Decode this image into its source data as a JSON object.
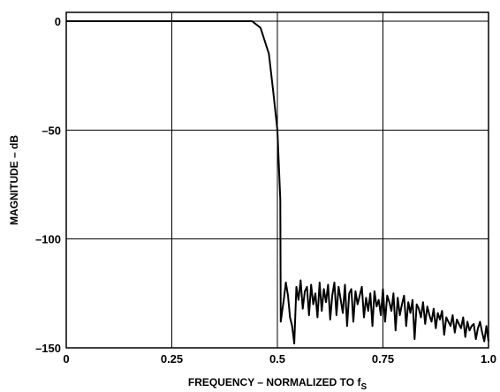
{
  "chart_data": {
    "type": "line",
    "title": "",
    "xlabel": "FREQUENCY – NORMALIZED TO f",
    "xlabel_sub": "S",
    "ylabel": "MAGNITUDE – dB",
    "xlim": [
      0,
      1.0
    ],
    "ylim": [
      -150,
      5
    ],
    "grid": true,
    "legend": "none",
    "x_ticks": [
      {
        "value": 0,
        "label": "0"
      },
      {
        "value": 0.25,
        "label": "0.25"
      },
      {
        "value": 0.5,
        "label": "0.5"
      },
      {
        "value": 0.75,
        "label": "0.75"
      },
      {
        "value": 1.0,
        "label": "1.0"
      }
    ],
    "y_ticks": [
      {
        "value": 0,
        "label": "0"
      },
      {
        "value": -50,
        "label": "–50"
      },
      {
        "value": -100,
        "label": "–100"
      },
      {
        "value": -150,
        "label": "–150"
      }
    ],
    "series": [
      {
        "color": "#000000",
        "x": [
          0,
          0.1,
          0.2,
          0.3,
          0.4,
          0.44,
          0.46,
          0.48,
          0.49,
          0.5,
          0.507,
          0.508,
          0.51,
          0.515,
          0.52,
          0.525,
          0.53,
          0.535,
          0.54,
          0.545,
          0.55,
          0.555,
          0.56,
          0.565,
          0.57,
          0.575,
          0.58,
          0.585,
          0.59,
          0.595,
          0.6,
          0.605,
          0.61,
          0.615,
          0.62,
          0.625,
          0.63,
          0.635,
          0.64,
          0.645,
          0.65,
          0.655,
          0.66,
          0.665,
          0.67,
          0.675,
          0.68,
          0.685,
          0.69,
          0.695,
          0.7,
          0.705,
          0.71,
          0.715,
          0.72,
          0.725,
          0.73,
          0.735,
          0.74,
          0.745,
          0.75,
          0.755,
          0.76,
          0.765,
          0.77,
          0.775,
          0.78,
          0.785,
          0.79,
          0.795,
          0.8,
          0.805,
          0.81,
          0.815,
          0.82,
          0.825,
          0.83,
          0.835,
          0.84,
          0.845,
          0.85,
          0.855,
          0.86,
          0.865,
          0.87,
          0.875,
          0.88,
          0.885,
          0.89,
          0.895,
          0.9,
          0.905,
          0.91,
          0.915,
          0.92,
          0.925,
          0.93,
          0.935,
          0.94,
          0.945,
          0.95,
          0.955,
          0.96,
          0.965,
          0.97,
          0.975,
          0.98,
          0.985,
          0.99,
          0.995,
          1.0
        ],
        "y": [
          0,
          0,
          0,
          0,
          0,
          0,
          -3,
          -15,
          -32,
          -50,
          -82,
          -138,
          -135,
          -128,
          -120,
          -126,
          -136,
          -140,
          -148,
          -122,
          -128,
          -119,
          -132,
          -124,
          -122,
          -135,
          -121,
          -130,
          -125,
          -136,
          -120,
          -133,
          -123,
          -129,
          -121,
          -137,
          -126,
          -120,
          -135,
          -122,
          -128,
          -134,
          -121,
          -140,
          -125,
          -123,
          -138,
          -124,
          -130,
          -126,
          -122,
          -136,
          -127,
          -133,
          -125,
          -140,
          -124,
          -131,
          -128,
          -135,
          -123,
          -138,
          -126,
          -129,
          -133,
          -125,
          -142,
          -127,
          -135,
          -130,
          -126,
          -140,
          -129,
          -134,
          -128,
          -146,
          -130,
          -132,
          -136,
          -129,
          -139,
          -131,
          -135,
          -138,
          -132,
          -141,
          -134,
          -137,
          -133,
          -144,
          -136,
          -138,
          -140,
          -135,
          -143,
          -137,
          -139,
          -141,
          -136,
          -145,
          -138,
          -142,
          -140,
          -139,
          -146,
          -141,
          -138,
          -143,
          -147,
          -140,
          -147
        ]
      }
    ]
  }
}
